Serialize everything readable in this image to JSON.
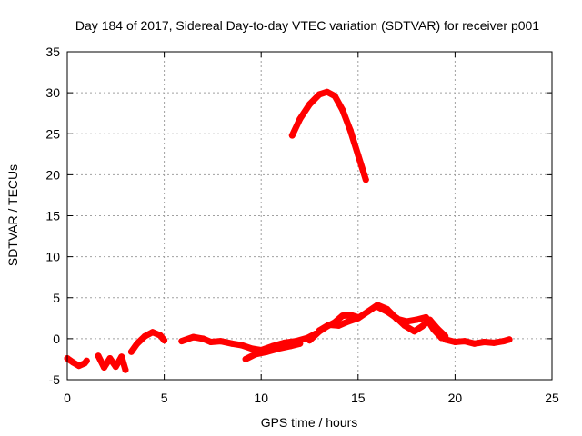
{
  "chart_data": {
    "type": "scatter",
    "title": "Day 184 of 2017, Sidereal Day-to-day VTEC variation (SDTVAR) for receiver p001",
    "xlabel": "GPS time / hours",
    "ylabel": "SDTVAR / TECUs",
    "xlim": [
      0,
      25
    ],
    "ylim": [
      -5,
      35
    ],
    "xticks": [
      0,
      5,
      10,
      15,
      20,
      25
    ],
    "yticks": [
      -5,
      0,
      5,
      10,
      15,
      20,
      25,
      30,
      35
    ],
    "grid": true,
    "legend": "none",
    "series_color": "#ff0000",
    "series": [
      {
        "name": "arc-high",
        "x": [
          11.6,
          12.0,
          12.5,
          13.0,
          13.4,
          13.8,
          14.2,
          14.6,
          15.0,
          15.4
        ],
        "y": [
          24.8,
          26.8,
          28.6,
          29.8,
          30.1,
          29.6,
          27.9,
          25.4,
          22.4,
          19.4
        ]
      },
      {
        "name": "seg-1",
        "x": [
          0.0,
          0.3,
          0.6,
          0.9,
          1.0
        ],
        "y": [
          -2.4,
          -2.9,
          -3.3,
          -3.0,
          -2.7
        ]
      },
      {
        "name": "seg-2",
        "x": [
          1.6,
          1.9,
          2.2,
          2.5,
          2.8,
          3.0
        ],
        "y": [
          -2.1,
          -3.5,
          -2.4,
          -3.4,
          -2.2,
          -3.8
        ]
      },
      {
        "name": "seg-3",
        "x": [
          3.3,
          3.6,
          4.0,
          4.4,
          4.8,
          5.0
        ],
        "y": [
          -1.6,
          -0.6,
          0.3,
          0.8,
          0.4,
          -0.2
        ]
      },
      {
        "name": "seg-4",
        "x": [
          5.9,
          6.5,
          7.0,
          7.4,
          7.9,
          8.5,
          9.0,
          9.5,
          10.0,
          10.6,
          11.2,
          11.8,
          12.4,
          12.8
        ],
        "y": [
          -0.3,
          0.2,
          0.0,
          -0.4,
          -0.3,
          -0.6,
          -0.8,
          -1.2,
          -1.4,
          -0.9,
          -0.5,
          -0.3,
          0.1,
          0.6
        ]
      },
      {
        "name": "seg-5",
        "x": [
          13.0,
          13.5,
          14.0,
          14.5,
          15.0,
          15.5,
          16.0,
          16.5,
          17.0,
          17.5,
          18.0,
          18.5,
          18.9,
          19.3
        ],
        "y": [
          1.0,
          1.7,
          1.6,
          2.1,
          2.5,
          3.3,
          4.1,
          3.6,
          2.4,
          2.1,
          2.3,
          2.6,
          1.1,
          0.1
        ]
      },
      {
        "name": "seg-6",
        "x": [
          19.5,
          20.0,
          20.5,
          21.0,
          21.5,
          22.0,
          22.5,
          22.8
        ],
        "y": [
          -0.1,
          -0.4,
          -0.3,
          -0.6,
          -0.4,
          -0.5,
          -0.3,
          -0.1
        ]
      },
      {
        "name": "seg-7",
        "x": [
          9.2,
          9.7,
          10.3,
          10.9,
          11.5,
          12.0
        ],
        "y": [
          -2.5,
          -1.9,
          -1.6,
          -1.2,
          -0.9,
          -0.6
        ]
      },
      {
        "name": "seg-8",
        "x": [
          12.5,
          13.0,
          13.4,
          13.8,
          14.2,
          14.6,
          15.0
        ],
        "y": [
          -0.2,
          0.9,
          1.5,
          2.0,
          2.8,
          2.9,
          2.6
        ]
      },
      {
        "name": "seg-9",
        "x": [
          16.0,
          16.5,
          17.0,
          17.4,
          17.9,
          18.3,
          18.7,
          19.1,
          19.5
        ],
        "y": [
          3.9,
          3.3,
          2.5,
          1.6,
          0.9,
          1.5,
          2.3,
          1.2,
          0.3
        ]
      }
    ]
  }
}
